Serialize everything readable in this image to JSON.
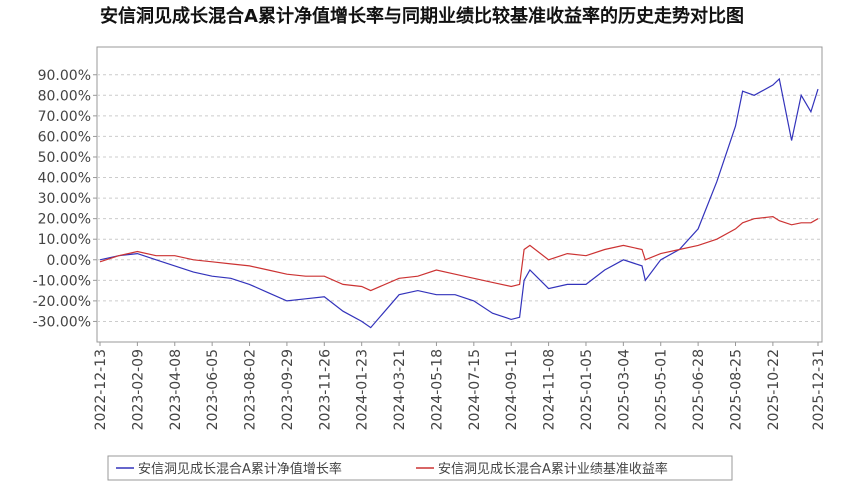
{
  "chart_data": {
    "type": "line",
    "title": "安信洞见成长混合A累计净值增长率与同期业绩比较基准收益率的历史走势对比图",
    "x": [
      "2022-12-13",
      "2023-01-11",
      "2023-02-09",
      "2023-03-10",
      "2023-04-08",
      "2023-05-07",
      "2023-06-05",
      "2023-07-04",
      "2023-08-02",
      "2023-08-31",
      "2023-09-29",
      "2023-10-28",
      "2023-11-26",
      "2023-12-25",
      "2024-01-23",
      "2024-02-06",
      "2024-03-21",
      "2024-04-19",
      "2024-05-18",
      "2024-06-16",
      "2024-07-15",
      "2024-08-13",
      "2024-09-11",
      "2024-09-24",
      "2024-10-01",
      "2024-10-10",
      "2024-11-08",
      "2024-12-07",
      "2025-01-05",
      "2025-02-03",
      "2025-03-04",
      "2025-04-02",
      "2025-04-07",
      "2025-05-01",
      "2025-05-30",
      "2025-06-28",
      "2025-07-27",
      "2025-08-25",
      "2025-09-05",
      "2025-09-23",
      "2025-10-22",
      "2025-11-01",
      "2025-11-20",
      "2025-12-05",
      "2025-12-20",
      "2025-12-31"
    ],
    "series": [
      {
        "name": "安信洞见成长混合A累计净值增长率",
        "color": "#3333bb",
        "values": [
          0,
          2,
          3,
          0,
          -3,
          -6,
          -8,
          -9,
          -12,
          -16,
          -20,
          -19,
          -18,
          -25,
          -30,
          -33,
          -17,
          -15,
          -17,
          -17,
          -20,
          -26,
          -29,
          -28,
          -10,
          -5,
          -14,
          -12,
          -12,
          -5,
          0,
          -3,
          -10,
          0,
          5,
          15,
          38,
          65,
          82,
          80,
          85,
          88,
          58,
          80,
          72,
          83
        ]
      },
      {
        "name": "安信洞见成长混合A累计业绩基准收益率",
        "color": "#cc3333",
        "values": [
          -1,
          2,
          4,
          2,
          2,
          0,
          -1,
          -2,
          -3,
          -5,
          -7,
          -8,
          -8,
          -12,
          -13,
          -15,
          -9,
          -8,
          -5,
          -7,
          -9,
          -11,
          -13,
          -12,
          5,
          7,
          0,
          3,
          2,
          5,
          7,
          5,
          0,
          3,
          5,
          7,
          10,
          15,
          18,
          20,
          21,
          19,
          17,
          18,
          18,
          20
        ]
      }
    ],
    "xlim": [
      "2022-12-13",
      "2025-12-31"
    ],
    "xticks": [
      "2022-12-13",
      "2023-02-09",
      "2023-04-08",
      "2023-06-05",
      "2023-08-02",
      "2023-09-29",
      "2023-11-26",
      "2024-01-23",
      "2024-03-21",
      "2024-05-18",
      "2024-07-15",
      "2024-09-11",
      "2024-11-08",
      "2025-01-05",
      "2025-03-04",
      "2025-05-01",
      "2025-06-28",
      "2025-08-25",
      "2025-10-22",
      "2025-12-31"
    ],
    "ylim": [
      -40,
      103.5
    ],
    "yticks": [
      {
        "value": -30,
        "label": "-30.00%"
      },
      {
        "value": -20,
        "label": "-20.00%"
      },
      {
        "value": -10,
        "label": "-10.00%"
      },
      {
        "value": 0,
        "label": "0.00%"
      },
      {
        "value": 10,
        "label": "10.00%"
      },
      {
        "value": 20,
        "label": "20.00%"
      },
      {
        "value": 30,
        "label": "30.00%"
      },
      {
        "value": 40,
        "label": "40.00%"
      },
      {
        "value": 50,
        "label": "50.00%"
      },
      {
        "value": 60,
        "label": "60.00%"
      },
      {
        "value": 70,
        "label": "70.00%"
      },
      {
        "value": 80,
        "label": "80.00%"
      },
      {
        "value": 90,
        "label": "90.00%"
      }
    ],
    "grid": true
  }
}
